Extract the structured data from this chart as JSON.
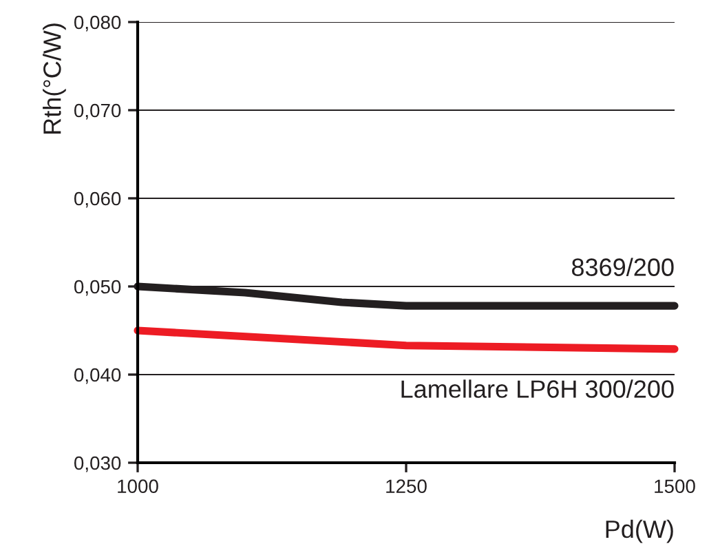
{
  "chart_data": {
    "type": "line",
    "xlabel": "Pd(W)",
    "ylabel": "Rth(°C/W)",
    "series": [
      {
        "name": "8369/200",
        "color": "#231f20",
        "x": [
          1000,
          1100,
          1190,
          1250,
          1500
        ],
        "values": [
          0.05,
          0.0493,
          0.0482,
          0.0478,
          0.0478
        ]
      },
      {
        "name": "Lamellare LP6H 300/200",
        "color": "#ed1c24",
        "x": [
          1000,
          1250,
          1500
        ],
        "values": [
          0.045,
          0.0433,
          0.0429
        ]
      }
    ],
    "xlim": [
      1000,
      1500
    ],
    "xticks": [
      1000,
      1250,
      1500
    ],
    "ylim": [
      0.03,
      0.08
    ],
    "yticks": [
      {
        "value": 0.03,
        "label": "0,030"
      },
      {
        "value": 0.04,
        "label": "0,040"
      },
      {
        "value": 0.05,
        "label": "0,050"
      },
      {
        "value": 0.06,
        "label": "0,060"
      },
      {
        "value": 0.07,
        "label": "0,070"
      },
      {
        "value": 0.08,
        "label": "0,080"
      }
    ],
    "grid": "y",
    "legend": false,
    "marker": "none",
    "line_style": "solid"
  }
}
